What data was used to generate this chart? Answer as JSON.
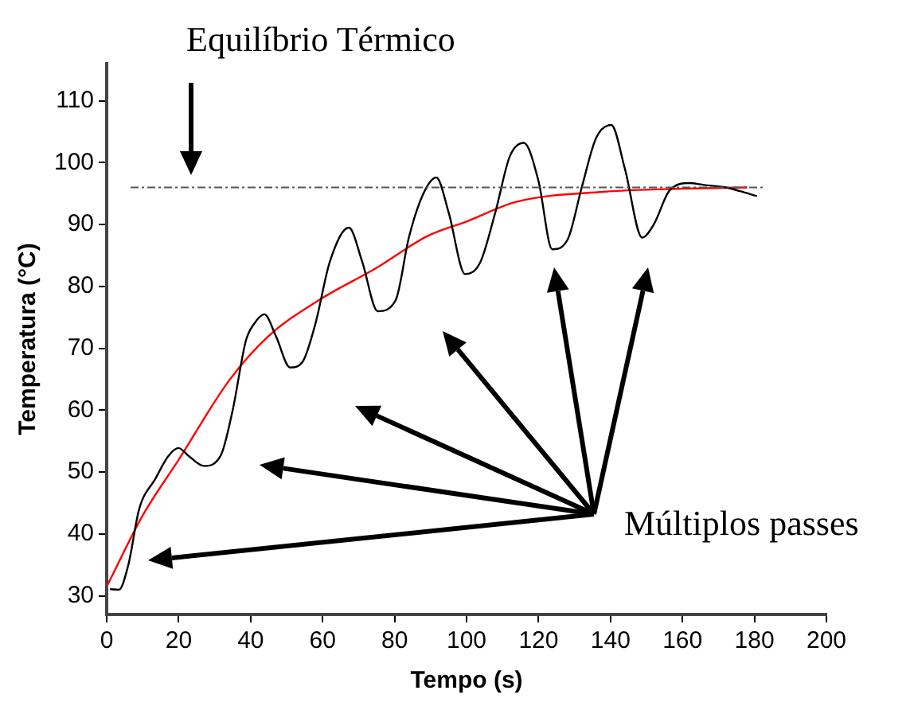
{
  "chart_data": {
    "type": "line",
    "xlabel": "Tempo (s)",
    "ylabel": "Temperatura (°C)",
    "xlim": [
      0,
      200
    ],
    "xticks": [
      0,
      20,
      40,
      60,
      80,
      100,
      120,
      140,
      160,
      180,
      200
    ],
    "ylim": [
      27,
      116
    ],
    "yticks": [
      30,
      40,
      50,
      60,
      70,
      80,
      90,
      100,
      110
    ],
    "grid": false,
    "legend": false,
    "marker": "none",
    "series": [
      {
        "color": "#000000",
        "x": [
          0.9,
          3.4,
          6,
          9,
          13.6,
          17,
          19.9,
          23,
          27,
          31.7,
          35,
          38.7,
          41,
          43.8,
          47,
          51,
          54.4,
          58,
          62,
          67.3,
          71,
          75.3,
          80.3,
          84,
          88,
          91.6,
          95,
          99.6,
          103.8,
          108,
          112,
          115.9,
          120,
          123.8,
          128.1,
          132,
          136,
          140.2,
          144,
          148.8,
          152,
          156.4,
          161.9,
          166,
          172,
          176,
          180.7
        ],
        "values": [
          31.1,
          31,
          35,
          44,
          49,
          52.5,
          53.9,
          52.5,
          51,
          52.7,
          60,
          71.3,
          74,
          75.5,
          72,
          66.9,
          67.8,
          74,
          84,
          89.5,
          84,
          76,
          77.8,
          88,
          95,
          97.6,
          92,
          82,
          83.9,
          92,
          101,
          103.2,
          97,
          86,
          87.6,
          96,
          104,
          106.1,
          99,
          87.9,
          90,
          95.5,
          96.7,
          96.4,
          96,
          95.4,
          94.6
        ]
      },
      {
        "color": "#ff0000",
        "x": [
          0,
          10,
          20,
          34,
          45,
          59,
          75,
          89,
          100,
          114,
          138,
          160,
          178
        ],
        "values": [
          31.5,
          43,
          52,
          64.8,
          72,
          77.8,
          83,
          88.1,
          90.5,
          93.7,
          95.3,
          95.8,
          96
        ]
      }
    ],
    "ref_lines": [
      {
        "axis": "y",
        "value": 96,
        "color": "#555555",
        "line_style": "dashdot"
      }
    ],
    "annotations": [
      "Equilíbrio Térmico",
      "Múltiplos passes"
    ]
  }
}
